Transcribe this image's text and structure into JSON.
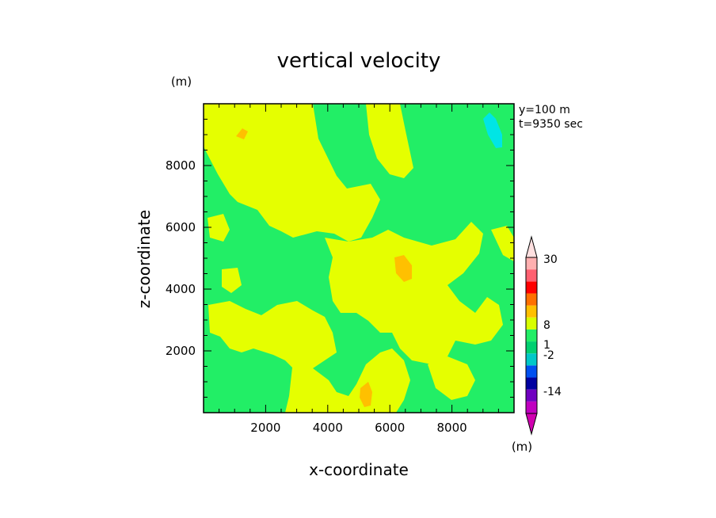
{
  "chart_data": {
    "type": "heatmap",
    "title": "vertical velocity",
    "xlabel": "x-coordinate",
    "ylabel": "z-coordinate",
    "y_unit": "(m)",
    "x_unit": "(m)",
    "annotation_lines": [
      "y=100 m",
      "t=9350 sec"
    ],
    "xlim": [
      0,
      10000
    ],
    "ylim": [
      0,
      10000
    ],
    "xticks": [
      2000,
      4000,
      6000,
      8000
    ],
    "yticks": [
      2000,
      4000,
      6000,
      8000
    ],
    "colorbar": {
      "tick_labels": [
        "30",
        "8",
        "1",
        "-2",
        "-14"
      ],
      "colors_bottom_to_top": [
        "#c000c0",
        "#7000c0",
        "#0000a0",
        "#0050f0",
        "#00c8c8",
        "#00d070",
        "#22ee66",
        "#d8ff00",
        "#ffc000",
        "#ff7000",
        "#ff0000",
        "#ff6070",
        "#ffb0b0"
      ]
    },
    "field_colors": {
      "background": "#22ee66",
      "positive_weak": "#e5ff00",
      "positive_moderate": "#ffc000",
      "negative_moderate": "#00e5e5"
    },
    "grid": false
  }
}
